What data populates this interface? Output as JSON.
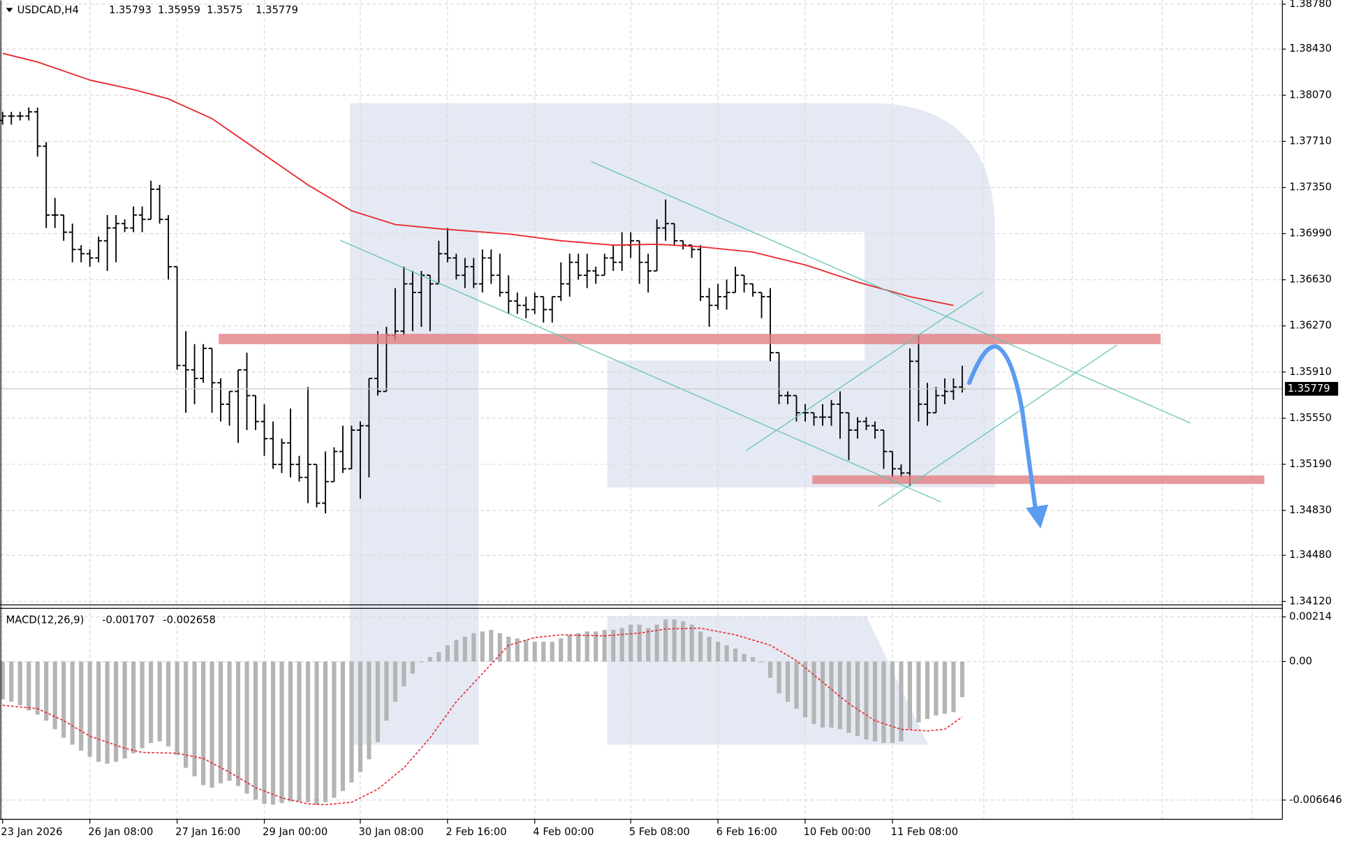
{
  "chart_data": [
    {
      "type": "ohlc",
      "title": "USDCAD,H4",
      "grid": true,
      "bar_color": "#000000",
      "bars": {
        "open": [
          1.37873,
          1.37907,
          1.37907,
          1.37907,
          1.3794,
          1.37672,
          1.37135,
          1.37135,
          1.37001,
          1.36866,
          1.36833,
          1.368,
          1.36934,
          1.37034,
          1.37068,
          1.37034,
          1.37135,
          1.37101,
          1.37336,
          1.37101,
          1.36732,
          1.35961,
          1.35927,
          1.3586,
          1.36095,
          1.35826,
          1.35659,
          1.35759,
          1.35927,
          1.35726,
          1.35524,
          1.3539,
          1.35189,
          1.35357,
          1.35189,
          1.35088,
          1.35189,
          1.34887,
          1.35055,
          1.3529,
          1.35155,
          1.35457,
          1.35491,
          1.3586,
          1.35759,
          1.36196,
          1.36229,
          1.36598,
          1.36531,
          1.36665,
          1.36598,
          1.36833,
          1.368,
          1.36665,
          1.36732,
          1.36598,
          1.368,
          1.36665,
          1.36531,
          1.36464,
          1.3643,
          1.36397,
          1.36498,
          1.36397,
          1.36498,
          1.36598,
          1.36766,
          1.36665,
          1.36699,
          1.36665,
          1.368,
          1.36766,
          1.369,
          1.36934,
          1.36766,
          1.36699,
          1.37034,
          1.37068,
          1.36934,
          1.369,
          1.36866,
          1.36498,
          1.3643,
          1.36498,
          1.36531,
          1.36665,
          1.36598,
          1.36531,
          1.36498,
          1.36061,
          1.35726,
          1.35726,
          1.35592,
          1.35592,
          1.35558,
          1.35558,
          1.35659,
          1.35592,
          1.35457,
          1.35524,
          1.35491,
          1.35457,
          1.3529,
          1.35155,
          1.35122,
          1.35994,
          1.35659,
          1.35592,
          1.35726,
          1.35759,
          1.35793
        ],
        "high": [
          1.3794,
          1.3794,
          1.3794,
          1.37974,
          1.37974,
          1.37705,
          1.37269,
          1.37135,
          1.37068,
          1.369,
          1.36866,
          1.36967,
          1.37135,
          1.37135,
          1.37101,
          1.37202,
          1.37202,
          1.37403,
          1.3737,
          1.37135,
          1.36732,
          1.36229,
          1.36128,
          1.36128,
          1.36095,
          1.3586,
          1.35759,
          1.35927,
          1.36061,
          1.35726,
          1.35659,
          1.35524,
          1.3539,
          1.35625,
          1.35256,
          1.35793,
          1.35189,
          1.3529,
          1.35323,
          1.35491,
          1.35491,
          1.35524,
          1.3586,
          1.36229,
          1.36263,
          1.36565,
          1.36732,
          1.36699,
          1.36699,
          1.36665,
          1.36934,
          1.37034,
          1.36833,
          1.368,
          1.368,
          1.36866,
          1.36866,
          1.36833,
          1.36665,
          1.36531,
          1.36498,
          1.36531,
          1.36498,
          1.36498,
          1.36766,
          1.36833,
          1.36833,
          1.36833,
          1.36732,
          1.36833,
          1.369,
          1.37001,
          1.37001,
          1.36934,
          1.36833,
          1.37101,
          1.37256,
          1.37068,
          1.36934,
          1.369,
          1.369,
          1.36565,
          1.36598,
          1.36632,
          1.36732,
          1.36665,
          1.36598,
          1.36531,
          1.36565,
          1.36061,
          1.35759,
          1.35726,
          1.35659,
          1.35592,
          1.35659,
          1.35692,
          1.35759,
          1.35592,
          1.35558,
          1.35558,
          1.35524,
          1.35457,
          1.3529,
          1.35189,
          1.36095,
          1.36196,
          1.35826,
          1.35793,
          1.3586,
          1.3586,
          1.35959
        ],
        "low": [
          1.3784,
          1.3784,
          1.37873,
          1.37873,
          1.37591,
          1.37034,
          1.37034,
          1.36934,
          1.36766,
          1.36766,
          1.36732,
          1.36766,
          1.36699,
          1.36766,
          1.37001,
          1.37001,
          1.37001,
          1.37101,
          1.37068,
          1.36632,
          1.35927,
          1.35592,
          1.35659,
          1.35826,
          1.35592,
          1.35524,
          1.35491,
          1.35357,
          1.35457,
          1.35457,
          1.35256,
          1.35155,
          1.35122,
          1.35088,
          1.35055,
          1.34887,
          1.34854,
          1.34807,
          1.35055,
          1.35122,
          1.35155,
          1.34921,
          1.35088,
          1.35726,
          1.35759,
          1.36162,
          1.36196,
          1.36229,
          1.36263,
          1.36229,
          1.36598,
          1.36766,
          1.36632,
          1.36565,
          1.36565,
          1.36531,
          1.36598,
          1.36498,
          1.36363,
          1.36363,
          1.3633,
          1.36363,
          1.36296,
          1.36296,
          1.36464,
          1.36498,
          1.36632,
          1.36565,
          1.36598,
          1.36665,
          1.36699,
          1.36699,
          1.368,
          1.36598,
          1.36531,
          1.36699,
          1.36934,
          1.369,
          1.36866,
          1.368,
          1.36464,
          1.36263,
          1.36397,
          1.36397,
          1.36531,
          1.36531,
          1.36498,
          1.3633,
          1.35994,
          1.35659,
          1.35659,
          1.35524,
          1.35524,
          1.35491,
          1.35491,
          1.35491,
          1.3539,
          1.35222,
          1.3539,
          1.35457,
          1.3539,
          1.35155,
          1.35088,
          1.35088,
          1.35021,
          1.35524,
          1.35491,
          1.35592,
          1.35659,
          1.35692,
          1.3575
        ],
        "close": [
          1.37907,
          1.37907,
          1.37907,
          1.3794,
          1.37672,
          1.37135,
          1.37135,
          1.37001,
          1.36866,
          1.36833,
          1.368,
          1.36934,
          1.37034,
          1.37068,
          1.37034,
          1.37135,
          1.37101,
          1.37336,
          1.37101,
          1.36732,
          1.35961,
          1.35927,
          1.3586,
          1.36095,
          1.35826,
          1.35659,
          1.35759,
          1.35927,
          1.35726,
          1.35524,
          1.3539,
          1.35189,
          1.35357,
          1.35189,
          1.35088,
          1.35189,
          1.34887,
          1.35055,
          1.3529,
          1.35155,
          1.35457,
          1.35491,
          1.3586,
          1.35759,
          1.36196,
          1.36229,
          1.36598,
          1.36531,
          1.36665,
          1.36598,
          1.36833,
          1.368,
          1.36665,
          1.36732,
          1.36598,
          1.368,
          1.36665,
          1.36531,
          1.36464,
          1.3643,
          1.36397,
          1.36498,
          1.36397,
          1.36498,
          1.36598,
          1.36766,
          1.36665,
          1.36699,
          1.36665,
          1.368,
          1.36766,
          1.369,
          1.36934,
          1.36766,
          1.36699,
          1.37034,
          1.37068,
          1.36934,
          1.369,
          1.36866,
          1.36498,
          1.3643,
          1.36498,
          1.36531,
          1.36665,
          1.36598,
          1.36531,
          1.36498,
          1.36061,
          1.35726,
          1.35726,
          1.35592,
          1.35592,
          1.35558,
          1.35558,
          1.35659,
          1.35592,
          1.35457,
          1.35524,
          1.35491,
          1.35457,
          1.3529,
          1.35155,
          1.35122,
          1.35994,
          1.35659,
          1.35592,
          1.35726,
          1.35759,
          1.35793,
          1.35779
        ]
      },
      "moving_average": {
        "color": "#e8282d",
        "x": [
          0,
          4,
          10,
          15,
          19,
          24,
          30,
          35,
          40,
          45,
          50,
          58,
          64,
          70,
          75,
          80,
          86,
          92,
          98,
          104,
          109
        ],
        "values": [
          1.38397,
          1.38329,
          1.38188,
          1.38114,
          1.38041,
          1.37887,
          1.37605,
          1.3737,
          1.37168,
          1.37061,
          1.37028,
          1.36987,
          1.36934,
          1.369,
          1.36907,
          1.36887,
          1.36846,
          1.36746,
          1.36612,
          1.36498,
          1.3643
        ]
      },
      "xlim": [
        -0.3,
        146.7
      ],
      "xticks": [
        {
          "value": 0,
          "label": "23 Jan 2026"
        },
        {
          "value": 10,
          "label": "26 Jan 08:00"
        },
        {
          "value": 20,
          "label": "27 Jan 16:00"
        },
        {
          "value": 30,
          "label": "29 Jan 00:00"
        },
        {
          "value": 41,
          "label": "30 Jan 08:00"
        },
        {
          "value": 51,
          "label": "2 Feb 16:00"
        },
        {
          "value": 61,
          "label": "4 Feb 00:00"
        },
        {
          "value": 72,
          "label": "5 Feb 08:00"
        },
        {
          "value": 82,
          "label": "6 Feb 16:00"
        },
        {
          "value": 92,
          "label": "10 Feb 00:00"
        },
        {
          "value": 102,
          "label": "11 Feb 08:00"
        }
      ],
      "ylim": [
        1.34093,
        1.38811
      ],
      "yticks": [
        {
          "value": 1.3412,
          "label": "1.34120"
        },
        {
          "value": 1.3448,
          "label": "1.34480"
        },
        {
          "value": 1.3483,
          "label": "1.34830"
        },
        {
          "value": 1.3519,
          "label": "1.35190"
        },
        {
          "value": 1.3555,
          "label": "1.35550"
        },
        {
          "value": 1.3591,
          "label": "1.35910"
        },
        {
          "value": 1.3627,
          "label": "1.36270"
        },
        {
          "value": 1.3663,
          "label": "1.36630"
        },
        {
          "value": 1.3699,
          "label": "1.36990"
        },
        {
          "value": 1.3735,
          "label": "1.37350"
        },
        {
          "value": 1.3771,
          "label": "1.37710"
        },
        {
          "value": 1.3807,
          "label": "1.38070"
        },
        {
          "value": 1.3843,
          "label": "1.38430"
        },
        {
          "value": 1.3878,
          "label": "1.38780"
        }
      ]
    },
    {
      "type": "macd",
      "title": "MACD(12,26,9)",
      "grid": true,
      "histogram": {
        "color": "#b4b4b4",
        "values": [
          -0.00181,
          -0.00193,
          -0.0021,
          -0.00235,
          -0.00255,
          -0.00284,
          -0.00325,
          -0.00366,
          -0.00399,
          -0.00428,
          -0.00457,
          -0.00481,
          -0.0049,
          -0.00481,
          -0.00465,
          -0.0044,
          -0.00416,
          -0.00391,
          -0.00383,
          -0.00407,
          -0.00449,
          -0.0051,
          -0.00551,
          -0.00593,
          -0.00605,
          -0.00584,
          -0.00572,
          -0.00597,
          -0.00634,
          -0.00663,
          -0.00683,
          -0.00687,
          -0.00679,
          -0.00671,
          -0.00671,
          -0.00675,
          -0.00687,
          -0.00675,
          -0.00654,
          -0.00621,
          -0.0058,
          -0.00531,
          -0.00469,
          -0.00387,
          -0.00284,
          -0.00193,
          -0.00119,
          -0.00058,
          -4e-05,
          0.00021,
          0.00045,
          0.00078,
          0.00103,
          0.00119,
          0.00136,
          0.00144,
          0.00152,
          0.00136,
          0.00119,
          0.00111,
          0.00103,
          0.00095,
          0.00095,
          0.00095,
          0.00111,
          0.00128,
          0.00136,
          0.00144,
          0.00144,
          0.00152,
          0.00152,
          0.0016,
          0.00177,
          0.00177,
          0.0016,
          0.00177,
          0.00202,
          0.00202,
          0.00193,
          0.00177,
          0.00144,
          0.00119,
          0.00095,
          0.00078,
          0.00062,
          0.00037,
          0.00021,
          -4e-05,
          -0.00078,
          -0.00152,
          -0.00193,
          -0.00226,
          -0.00267,
          -0.003,
          -0.00317,
          -0.00317,
          -0.00325,
          -0.00342,
          -0.00358,
          -0.00374,
          -0.00383,
          -0.00391,
          -0.00391,
          -0.00383,
          -0.00325,
          -0.00292,
          -0.00276,
          -0.00259,
          -0.00251,
          -0.00243,
          -0.001707
        ]
      },
      "signal": {
        "color": "#e8282d",
        "x": [
          0,
          4,
          7,
          10,
          14,
          16,
          20,
          23,
          26,
          29,
          32,
          35,
          37,
          40,
          43,
          46,
          49,
          52,
          55,
          58,
          61,
          64,
          69,
          73,
          76,
          80,
          84,
          88,
          91,
          94,
          97,
          100,
          103,
          106,
          108,
          110
        ],
        "values": [
          -0.0021,
          -0.00226,
          -0.00284,
          -0.00358,
          -0.00416,
          -0.00436,
          -0.0044,
          -0.00465,
          -0.00531,
          -0.00605,
          -0.00654,
          -0.00683,
          -0.00687,
          -0.00675,
          -0.00613,
          -0.0051,
          -0.00366,
          -0.00193,
          -0.00058,
          0.00078,
          0.00115,
          0.00128,
          0.00123,
          0.00136,
          0.00156,
          0.0016,
          0.00128,
          0.00078,
          4e-05,
          -0.00099,
          -0.00202,
          -0.00284,
          -0.00325,
          -0.00333,
          -0.00325,
          -0.002658
        ]
      },
      "xlim": [
        -0.3,
        146.7
      ],
      "ylim": [
        -0.00757,
        0.00251
      ],
      "yticks": [
        0.00214,
        {
          "value": 0,
          "label": "0.00"
        },
        -0.006646
      ]
    }
  ]
}
